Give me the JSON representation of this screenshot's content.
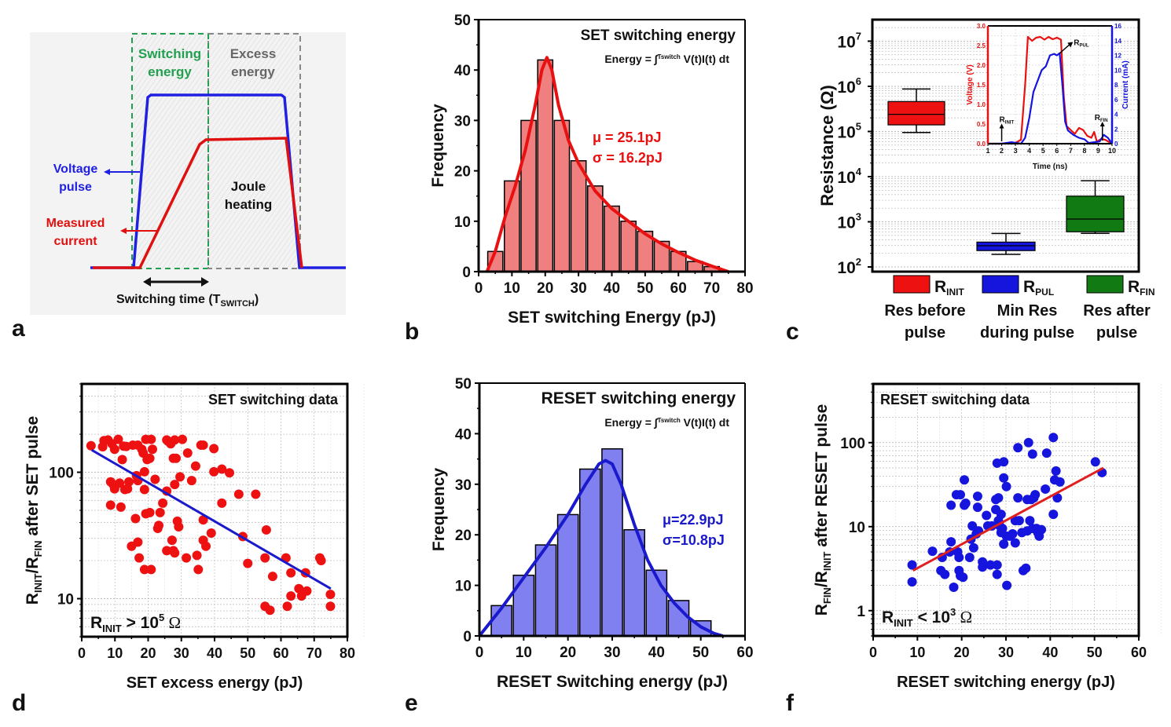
{
  "panels": {
    "a": {
      "letter": "a"
    },
    "b": {
      "letter": "b"
    },
    "c": {
      "letter": "c"
    },
    "d": {
      "letter": "d"
    },
    "e": {
      "letter": "e"
    },
    "f": {
      "letter": "f"
    }
  },
  "diagram_a": {
    "switching_energy_label": [
      "Switching",
      "energy"
    ],
    "excess_energy_label": [
      "Excess",
      "energy"
    ],
    "joule_label": [
      "Joule",
      "heating"
    ],
    "voltage_label": [
      "Voltage",
      "pulse"
    ],
    "current_label": [
      "Measured",
      "current"
    ],
    "switching_time_label": "Switching time (T",
    "switching_time_sub": "SWITCH",
    "switching_time_close": ")",
    "colors": {
      "voltage": "#2020e0",
      "current": "#e01010",
      "switching": "#22a050",
      "excess": "#888888"
    }
  },
  "chart_data": [
    {
      "id": "b",
      "type": "bar",
      "title": "SET switching energy",
      "formula": {
        "lhs": "Energy = ",
        "integral": "∫",
        "upper": "Tswitch",
        "lower": "0",
        "rhs": " V(t)I(t) dt"
      },
      "xlabel": "SET switching Energy (pJ)",
      "ylabel": "Frequency",
      "xlim": [
        0,
        80
      ],
      "ylim": [
        0,
        50
      ],
      "xticks": [
        0,
        10,
        20,
        30,
        40,
        50,
        60,
        70,
        80
      ],
      "yticks": [
        0,
        10,
        20,
        30,
        40,
        50
      ],
      "bin_width": 5,
      "categories": [
        5,
        10,
        15,
        20,
        25,
        30,
        35,
        40,
        45,
        50,
        55,
        60,
        65,
        70
      ],
      "values": [
        4,
        18,
        30,
        42,
        30,
        22,
        17,
        13,
        10,
        8,
        6,
        4,
        2,
        1
      ],
      "fit": {
        "x": [
          2.5,
          5,
          8,
          11,
          14,
          17,
          19,
          20.5,
          22,
          24,
          27,
          30,
          35,
          40,
          45,
          50,
          55,
          60,
          65,
          70,
          75
        ],
        "y": [
          0,
          4,
          11,
          17,
          24,
          33,
          40,
          42.5,
          40,
          33,
          26,
          21.5,
          16,
          12.5,
          10,
          7.5,
          5.5,
          3.8,
          2.3,
          1.1,
          0
        ]
      },
      "annotations": [
        "μ = 25.1pJ",
        "σ = 16.2pJ"
      ],
      "bar_color": "#f08080",
      "fit_color": "#e81010",
      "grid": false
    },
    {
      "id": "c",
      "type": "box",
      "ylabel": "Resistance (Ω)",
      "yscale": "log",
      "ylim": [
        100,
        30000000
      ],
      "yticks": [
        {
          "v": 100,
          "base": "10",
          "exp": "2"
        },
        {
          "v": 1000,
          "base": "10",
          "exp": "3"
        },
        {
          "v": 10000,
          "base": "10",
          "exp": "4"
        },
        {
          "v": 100000,
          "base": "10",
          "exp": "5"
        },
        {
          "v": 1000000,
          "base": "10",
          "exp": "6"
        },
        {
          "v": 10000000,
          "base": "10",
          "exp": "7"
        }
      ],
      "grid": true,
      "boxes": [
        {
          "name": "R",
          "sub": "INIT",
          "desc": [
            "Res before",
            "pulse"
          ],
          "color": "#ee1111",
          "whisker_low": 95000,
          "q1": 140000,
          "median": 240000,
          "q3": 460000,
          "whisker_high": 870000
        },
        {
          "name": "R",
          "sub": "PUL",
          "desc": [
            "Min Res",
            "during pulse"
          ],
          "color": "#1515dd",
          "whisker_low": 190,
          "q1": 230,
          "median": 295,
          "q3": 355,
          "whisker_high": 550
        },
        {
          "name": "R",
          "sub": "FIN",
          "desc": [
            "Res after",
            "pulse"
          ],
          "color": "#127a12",
          "whisker_low": 555,
          "q1": 600,
          "median": 1150,
          "q3": 3700,
          "whisker_high": 8100
        }
      ],
      "inset": {
        "type": "line",
        "xlabel": "Time (ns)",
        "ylabel_left": "Voltage (V)",
        "ylabel_right": "Current (mA)",
        "xlim": [
          1,
          10
        ],
        "ylim_left": [
          0,
          3.0
        ],
        "ylim_right": [
          0,
          16
        ],
        "xticks": [
          1,
          2,
          3,
          4,
          5,
          6,
          7,
          8,
          9,
          10
        ],
        "yticks_left": [
          "0.0",
          "0.5",
          "1.0",
          "1.5",
          "2.0",
          "2.5",
          "3.0"
        ],
        "yticks_right": [
          0,
          2,
          4,
          6,
          8,
          10,
          12,
          14,
          16
        ],
        "voltage": {
          "x": [
            1,
            2,
            3,
            3.4,
            3.7,
            3.9,
            4.2,
            4.5,
            4.8,
            5.1,
            5.4,
            5.7,
            6.0,
            6.3,
            6.5,
            6.7,
            7.0,
            7.3,
            7.6,
            7.9,
            8.2,
            8.5,
            8.7,
            8.9,
            9.2,
            9.5,
            10
          ],
          "y": [
            0,
            0,
            0.02,
            0.1,
            1.5,
            2.72,
            2.62,
            2.7,
            2.72,
            2.65,
            2.72,
            2.66,
            2.7,
            2.65,
            1.2,
            0.45,
            0.35,
            0.25,
            0.4,
            0.35,
            0.2,
            0.15,
            0.3,
            0.05,
            0.12,
            0.1,
            0
          ]
        },
        "current": {
          "x": [
            1,
            2,
            2.7,
            3.4,
            3.7,
            4.0,
            4.3,
            4.6,
            4.9,
            5.2,
            5.5,
            5.8,
            6.0,
            6.2,
            6.4,
            6.6,
            6.8,
            7.2,
            7.6,
            8.0,
            8.3,
            8.7,
            9.1,
            9.4,
            9.7,
            10
          ],
          "y": [
            0,
            0,
            0.2,
            0,
            0.8,
            3.5,
            7,
            8.5,
            10,
            10.5,
            12,
            12.2,
            12,
            12.3,
            8,
            3,
            1.8,
            1.2,
            0.8,
            0.6,
            0.1,
            0.2,
            0.3,
            1.2,
            0.8,
            0
          ]
        },
        "voltage_color": "#e81010",
        "current_color": "#1515dd",
        "markers": [
          {
            "label": "R",
            "sub": "INIT",
            "x": 2.0
          },
          {
            "label": "R",
            "sub": "PUL",
            "x": 6.2
          },
          {
            "label": "R",
            "sub": "FIN",
            "x": 9.3
          }
        ]
      }
    },
    {
      "id": "d",
      "type": "scatter",
      "title": "SET switching data",
      "annotation": {
        "text": "R",
        "sub": "INIT",
        "rest": " > 10",
        "sup": "5",
        "unit": " Ω"
      },
      "xlabel": "SET excess energy (pJ)",
      "ylabel": {
        "a": "R",
        "a_sub": "INIT",
        "b": "/R",
        "b_sub": "FIN",
        "c": " after SET pulse"
      },
      "xlim": [
        0,
        80
      ],
      "ylim": [
        5,
        500
      ],
      "yscale": "log",
      "xticks": [
        0,
        10,
        20,
        30,
        40,
        50,
        60,
        70,
        80
      ],
      "yticks": [
        10,
        100
      ],
      "grid": true,
      "point_color": "#ee1111",
      "fit_color": "#1a1acc",
      "fit": {
        "x": [
          3,
          75
        ],
        "y": [
          150,
          12
        ]
      },
      "x": [
        2.8,
        6.3,
        6.7,
        7.9,
        9.1,
        9.9,
        11.0,
        12.6,
        13.4,
        15.4,
        16.9,
        18.1,
        18.5,
        12.2,
        18.9,
        19.7,
        20.5,
        19.3,
        20.9,
        21.3,
        25.6,
        26.0,
        26.8,
        28.0,
        30.3,
        27.6,
        28.4,
        31.9,
        34.3,
        35.9,
        36.6,
        39.8,
        39.8,
        42.2,
        44.5,
        8.7,
        9.5,
        9.9,
        11.4,
        13.0,
        13.8,
        14.2,
        16.5,
        16.9,
        18.9,
        22.1,
        25.6,
        29.6,
        28.0,
        33.1,
        8.7,
        11.8,
        16.2,
        19.3,
        20.5,
        23.6,
        24.4,
        22.9,
        23.2,
        28.8,
        29.2,
        15.0,
        16.9,
        17.3,
        18.9,
        20.9,
        25.6,
        27.2,
        27.6,
        28.0,
        31.5,
        34.7,
        35.1,
        36.6,
        36.6,
        37.4,
        39.0,
        42.2,
        47.3,
        48.5,
        50.0,
        52.4,
        55.6,
        55.2,
        57.5,
        55.2,
        56.7,
        61.5,
        61.9,
        63.0,
        63.0,
        65.4,
        66.2,
        67.4,
        67.8,
        71.7,
        72.1,
        74.9,
        74.9
      ],
      "y": [
        162,
        159,
        178,
        180,
        168,
        152,
        182,
        161,
        160,
        164,
        164,
        152,
        142,
        126,
        101,
        126,
        129,
        182,
        182,
        152,
        180,
        176,
        168,
        180,
        182,
        129,
        129,
        142,
        112,
        164,
        164,
        154,
        101,
        106,
        99,
        84,
        80,
        74,
        82,
        73,
        74,
        84,
        94,
        86,
        73,
        88,
        71,
        92,
        80,
        86,
        55,
        53,
        43,
        47,
        48,
        48,
        57,
        36,
        38,
        41,
        37,
        26,
        28,
        21,
        17,
        17,
        24,
        29,
        24,
        23,
        21,
        22,
        17,
        42,
        29,
        26,
        33,
        57,
        67,
        31,
        19,
        67,
        35,
        21,
        15,
        8.7,
        8.1,
        21,
        8.7,
        10.5,
        16,
        12,
        10.5,
        16,
        11.5,
        21,
        20,
        10.8,
        8.7
      ]
    },
    {
      "id": "e",
      "type": "bar",
      "title": "RESET switching energy",
      "formula": {
        "lhs": "Energy = ",
        "integral": "∫",
        "upper": "Tswitch",
        "lower": "0",
        "rhs": " V(t)I(t) dt"
      },
      "xlabel": "RESET Switching energy (pJ)",
      "ylabel": "Frequency",
      "xlim": [
        0,
        60
      ],
      "ylim": [
        0,
        50
      ],
      "xticks": [
        0,
        10,
        20,
        30,
        40,
        50,
        60
      ],
      "yticks": [
        0,
        10,
        20,
        30,
        40,
        50
      ],
      "bin_width": 5,
      "categories": [
        5,
        10,
        15,
        20,
        25,
        30,
        35,
        40,
        45,
        50
      ],
      "values": [
        6,
        12,
        18,
        24,
        33,
        37,
        21,
        13,
        7,
        3
      ],
      "fit": {
        "x": [
          0,
          5,
          10,
          15,
          20,
          24,
          27,
          28.5,
          30,
          32,
          35,
          38,
          41,
          44,
          47,
          50,
          53,
          55
        ],
        "y": [
          0,
          5.5,
          11.5,
          17.5,
          24,
          30,
          34,
          34.7,
          34,
          30,
          22,
          15,
          10,
          6.5,
          3.8,
          1.8,
          0.5,
          0
        ]
      },
      "annotations": [
        "μ=22.9pJ",
        "σ=10.8pJ"
      ],
      "bar_color": "#8080f0",
      "fit_color": "#1a1acc",
      "grid": false
    },
    {
      "id": "f",
      "type": "scatter",
      "title": "RESET switching data",
      "annotation": {
        "text": "R",
        "sub": "INIT",
        "rest": " < 10",
        "sup": "3",
        "unit": " Ω"
      },
      "xlabel": "RESET switching energy (pJ)",
      "ylabel": {
        "a": "R",
        "a_sub": "FIN",
        "b": "/R",
        "b_sub": "INIT",
        "c": " after RESET pulse"
      },
      "xlim": [
        0,
        60
      ],
      "ylim": [
        0.5,
        500
      ],
      "yscale": "log",
      "xticks": [
        0,
        10,
        20,
        30,
        40,
        50,
        60
      ],
      "yticks": [
        1,
        10,
        100
      ],
      "grid": true,
      "point_color": "#1515dd",
      "fit_color": "#e02020",
      "fit": {
        "x": [
          9,
          52
        ],
        "y": [
          3,
          50
        ]
      },
      "x": [
        8.8,
        8.8,
        13.4,
        15.6,
        15.3,
        16.2,
        17.6,
        17.3,
        17.6,
        18.8,
        19.7,
        19.1,
        19.4,
        19.7,
        19.4,
        18.2,
        20.3,
        20.6,
        20.9,
        20.6,
        21.8,
        22.1,
        22.4,
        22.7,
        23.3,
        23.6,
        23.6,
        23.8,
        24.7,
        24.7,
        25.6,
        25.9,
        26.5,
        26.8,
        28.0,
        28.0,
        28.0,
        27.7,
        27.7,
        28.3,
        28.3,
        28.6,
        28.9,
        28.9,
        29.2,
        29.5,
        29.5,
        29.5,
        30.1,
        30.1,
        30.2,
        30.9,
        31.5,
        32.1,
        32.1,
        32.7,
        32.7,
        33.0,
        33.6,
        33.9,
        34.5,
        34.8,
        34.8,
        35.1,
        35.4,
        35.7,
        36.0,
        36.0,
        36.3,
        36.6,
        36.9,
        37.2,
        37.5,
        38.0,
        38.9,
        39.2,
        40.7,
        40.7,
        41.0,
        41.3,
        41.6,
        42.2,
        50.2,
        51.7
      ],
      "y": [
        3.5,
        2.2,
        5.1,
        4.3,
        3.0,
        2.7,
        6.6,
        5.0,
        18,
        24,
        24,
        5.0,
        4.3,
        2.6,
        3.0,
        1.9,
        2.5,
        18,
        19,
        36,
        4.3,
        7.1,
        10.2,
        5.6,
        8.2,
        17,
        23,
        8.9,
        3.3,
        3.8,
        13.6,
        10.2,
        3.5,
        10.2,
        3.5,
        2.7,
        57,
        16,
        21,
        22,
        11.8,
        10.2,
        14,
        8.5,
        9.5,
        59,
        38,
        6.2,
        30,
        7.7,
        2.0,
        7.7,
        8.2,
        6.4,
        11.8,
        87,
        22,
        11.8,
        8.5,
        3.0,
        3.2,
        8.9,
        21,
        100,
        11.8,
        21,
        9.5,
        73,
        22,
        24,
        9.5,
        8.5,
        7.7,
        9.2,
        28,
        75,
        115,
        14,
        36,
        46,
        22,
        34,
        59,
        44
      ]
    }
  ]
}
